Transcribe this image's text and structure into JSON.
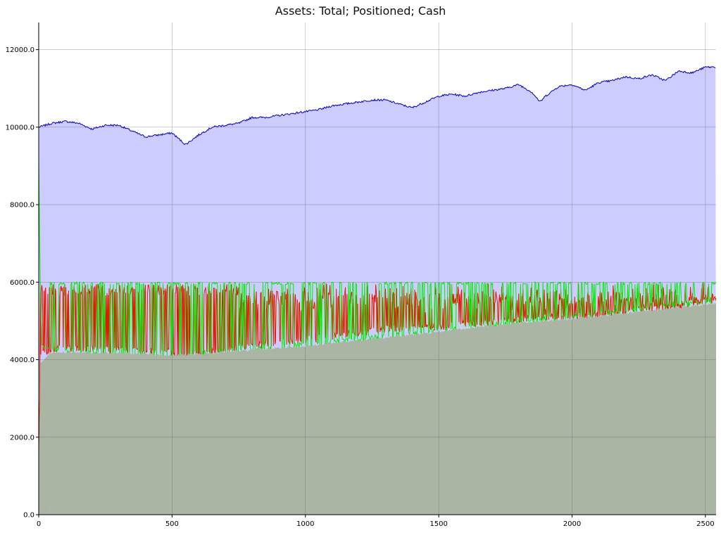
{
  "chart_data": {
    "type": "area",
    "title": "Assets: Total; Positioned; Cash",
    "xlabel": "",
    "ylabel": "",
    "xlim": [
      0,
      2540
    ],
    "ylim": [
      0,
      12700
    ],
    "x_ticks": [
      0,
      500,
      1000,
      1500,
      2000,
      2500
    ],
    "y_ticks": [
      0,
      2000,
      4000,
      6000,
      8000,
      10000,
      12000
    ],
    "x_tick_labels": [
      "0",
      "500",
      "1000",
      "1500",
      "2000",
      "2500"
    ],
    "y_tick_labels": [
      "0.0",
      "2000.0",
      "4000.0",
      "6000.0",
      "8000.0",
      "10000.0",
      "12000.0"
    ],
    "grid": true,
    "legend": "none",
    "series": [
      {
        "color": "#0000bb",
        "fill": "#ccccff",
        "x": [
          0,
          50,
          100,
          150,
          200,
          250,
          300,
          350,
          400,
          450,
          500,
          550,
          600,
          650,
          700,
          750,
          800,
          850,
          900,
          950,
          1000,
          1050,
          1100,
          1150,
          1200,
          1250,
          1300,
          1350,
          1400,
          1450,
          1500,
          1550,
          1600,
          1650,
          1700,
          1750,
          1800,
          1850,
          1880,
          1900,
          1950,
          2000,
          2050,
          2100,
          2150,
          2200,
          2250,
          2300,
          2350,
          2400,
          2450,
          2500,
          2540
        ],
        "y": [
          10000,
          10100,
          10150,
          10100,
          9950,
          10050,
          10050,
          9900,
          9750,
          9800,
          9850,
          9550,
          9800,
          10000,
          10050,
          10100,
          10250,
          10250,
          10300,
          10350,
          10400,
          10450,
          10550,
          10600,
          10650,
          10700,
          10700,
          10600,
          10500,
          10650,
          10800,
          10850,
          10800,
          10900,
          10950,
          11000,
          11100,
          10900,
          10650,
          10800,
          11050,
          11100,
          10950,
          11150,
          11200,
          11300,
          11250,
          11350,
          11200,
          11450,
          11400,
          11550,
          11550
        ]
      },
      {
        "color": "#ee1100",
        "band": [
          [
            0,
            700
          ],
          [
            6,
            4000
          ],
          [
            50,
            4200
          ],
          [
            500,
            4100
          ],
          [
            550,
            3900
          ],
          [
            700,
            4200
          ],
          [
            1000,
            4400
          ],
          [
            1300,
            4700
          ],
          [
            1500,
            4750
          ],
          [
            1800,
            4950
          ],
          [
            1950,
            5000
          ],
          [
            2000,
            4950
          ],
          [
            2500,
            5400
          ],
          [
            2540,
            5450
          ]
        ],
        "top": 5950
      },
      {
        "color": "#00ff00",
        "x": [
          0,
          3,
          6,
          12,
          20,
          30,
          40
        ],
        "y": [
          9200,
          7500,
          5800,
          4400,
          4300,
          4300,
          4300
        ],
        "band_low": [
          [
            40,
            4200
          ],
          [
            500,
            3800
          ],
          [
            600,
            4100
          ],
          [
            1000,
            4300
          ],
          [
            2540,
            5450
          ]
        ],
        "band_high": 6000
      },
      {
        "color": "#8b9a86",
        "fill": "#aab5a4",
        "x": [
          0,
          100,
          400,
          500,
          600,
          700,
          800,
          900,
          1000,
          1200,
          1400,
          1600,
          1800,
          2000,
          2200,
          2400,
          2540
        ],
        "y": [
          4150,
          4200,
          4150,
          4100,
          4150,
          4200,
          4250,
          4300,
          4350,
          4500,
          4650,
          4800,
          4950,
          5050,
          5200,
          5350,
          5450
        ]
      }
    ]
  }
}
